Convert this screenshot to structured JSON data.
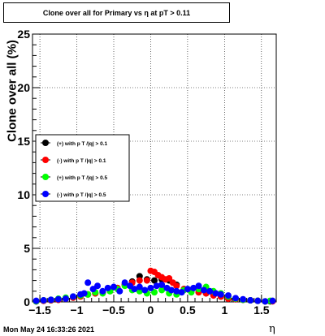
{
  "footer": {
    "timestamp": "Mon May 24 16:33:26 2021"
  },
  "chart_data": {
    "type": "scatter",
    "title": "Clone  over all for Primary vs   η at pT > 0.11",
    "xlabel": "η",
    "ylabel": "Clone  over all (%)",
    "xlim": [
      -1.6,
      1.7
    ],
    "ylim": [
      0,
      25
    ],
    "xticks": [
      -1.5,
      -1,
      -0.5,
      0,
      0.5,
      1,
      1.5
    ],
    "xtick_labels": [
      "−1.5",
      "−1",
      "−0.5",
      "0",
      "0.5",
      "1",
      "1.5"
    ],
    "yticks": [
      0,
      5,
      10,
      15,
      20,
      25
    ],
    "ytick_labels": [
      "0",
      "5",
      "10",
      "15",
      "20",
      "25"
    ],
    "grid": true,
    "legend_position": "left-middle",
    "series": [
      {
        "name": "(+) with p T /|q| > 0.1",
        "color": "#000000",
        "points": [
          [
            -1.55,
            0.05
          ],
          [
            -1.45,
            0.1
          ],
          [
            -1.35,
            0.15
          ],
          [
            -1.25,
            0.2
          ],
          [
            -1.15,
            0.3
          ],
          [
            -1.05,
            0.4
          ],
          [
            -0.95,
            0.6
          ],
          [
            -0.85,
            0.7
          ],
          [
            -0.75,
            0.8
          ],
          [
            -0.65,
            0.9
          ],
          [
            -0.55,
            1.1
          ],
          [
            -0.45,
            1.3
          ],
          [
            -0.35,
            1.6
          ],
          [
            -0.25,
            1.9
          ],
          [
            -0.15,
            2.4
          ],
          [
            -0.05,
            2.1
          ],
          [
            0.05,
            2.0
          ],
          [
            0.15,
            2.1
          ],
          [
            0.25,
            2.0
          ],
          [
            0.35,
            1.6
          ],
          [
            0.45,
            1.2
          ],
          [
            0.55,
            1.1
          ],
          [
            0.65,
            0.9
          ],
          [
            0.75,
            0.8
          ],
          [
            0.85,
            0.7
          ],
          [
            0.95,
            0.5
          ],
          [
            1.05,
            0.3
          ],
          [
            1.15,
            0.25
          ],
          [
            1.25,
            0.2
          ],
          [
            1.35,
            0.15
          ],
          [
            1.45,
            0.1
          ],
          [
            1.55,
            0.05
          ],
          [
            1.62,
            0.05
          ]
        ]
      },
      {
        "name": "(-) with p T /|q| > 0.1",
        "color": "#ff0000",
        "points": [
          [
            -1.55,
            0.05
          ],
          [
            -1.45,
            0.1
          ],
          [
            -1.35,
            0.15
          ],
          [
            -1.25,
            0.2
          ],
          [
            -1.15,
            0.3
          ],
          [
            -1.05,
            0.4
          ],
          [
            -0.95,
            0.5
          ],
          [
            -0.85,
            0.7
          ],
          [
            -0.75,
            0.8
          ],
          [
            -0.65,
            0.9
          ],
          [
            -0.55,
            1.0
          ],
          [
            -0.45,
            1.3
          ],
          [
            -0.35,
            1.6
          ],
          [
            -0.25,
            1.8
          ],
          [
            -0.15,
            2.0
          ],
          [
            -0.05,
            2.0
          ],
          [
            0.0,
            2.9
          ],
          [
            0.05,
            2.8
          ],
          [
            0.1,
            2.5
          ],
          [
            0.15,
            2.3
          ],
          [
            0.2,
            2.1
          ],
          [
            0.25,
            2.2
          ],
          [
            0.3,
            1.8
          ],
          [
            0.35,
            1.5
          ],
          [
            0.45,
            1.2
          ],
          [
            0.55,
            1.0
          ],
          [
            0.65,
            0.9
          ],
          [
            0.75,
            0.8
          ],
          [
            0.85,
            0.6
          ],
          [
            0.95,
            0.5
          ],
          [
            1.05,
            0.3
          ],
          [
            1.15,
            0.25
          ],
          [
            1.25,
            0.2
          ],
          [
            1.35,
            0.15
          ],
          [
            1.45,
            0.1
          ],
          [
            1.55,
            0.05
          ],
          [
            1.65,
            0.05
          ]
        ]
      },
      {
        "name": "(+) with p T /|q| > 0.5",
        "color": "#00ff00",
        "points": [
          [
            -1.55,
            0.05
          ],
          [
            -1.45,
            0.15
          ],
          [
            -1.35,
            0.2
          ],
          [
            -1.25,
            0.3
          ],
          [
            -1.15,
            0.4
          ],
          [
            -1.05,
            0.5
          ],
          [
            -0.95,
            0.6
          ],
          [
            -0.85,
            0.7
          ],
          [
            -0.75,
            0.9
          ],
          [
            -0.65,
            0.8
          ],
          [
            -0.55,
            1.0
          ],
          [
            -0.45,
            1.2
          ],
          [
            -0.35,
            1.5
          ],
          [
            -0.25,
            1.1
          ],
          [
            -0.15,
            1.0
          ],
          [
            -0.05,
            0.8
          ],
          [
            0.05,
            0.9
          ],
          [
            0.15,
            1.1
          ],
          [
            0.25,
            0.8
          ],
          [
            0.35,
            0.7
          ],
          [
            0.45,
            1.1
          ],
          [
            0.55,
            0.9
          ],
          [
            0.65,
            1.2
          ],
          [
            0.75,
            1.4
          ],
          [
            0.85,
            1.0
          ],
          [
            0.95,
            0.8
          ],
          [
            1.05,
            0.5
          ],
          [
            1.15,
            0.3
          ],
          [
            1.25,
            0.2
          ],
          [
            1.35,
            0.15
          ],
          [
            1.45,
            0.1
          ],
          [
            1.55,
            0.05
          ],
          [
            1.62,
            0.1
          ]
        ]
      },
      {
        "name": "(-) with p T /|q| > 0.5",
        "color": "#0000ff",
        "points": [
          [
            -1.55,
            0.1
          ],
          [
            -1.45,
            0.15
          ],
          [
            -1.35,
            0.2
          ],
          [
            -1.25,
            0.25
          ],
          [
            -1.15,
            0.3
          ],
          [
            -1.05,
            0.5
          ],
          [
            -0.95,
            0.7
          ],
          [
            -0.9,
            0.8
          ],
          [
            -0.85,
            1.8
          ],
          [
            -0.78,
            1.2
          ],
          [
            -0.72,
            1.5
          ],
          [
            -0.65,
            1.0
          ],
          [
            -0.58,
            1.3
          ],
          [
            -0.5,
            1.4
          ],
          [
            -0.42,
            1.0
          ],
          [
            -0.35,
            1.8
          ],
          [
            -0.28,
            1.5
          ],
          [
            -0.22,
            1.2
          ],
          [
            -0.15,
            1.4
          ],
          [
            -0.08,
            1.1
          ],
          [
            0.0,
            1.3
          ],
          [
            0.08,
            1.5
          ],
          [
            0.15,
            1.6
          ],
          [
            0.22,
            1.3
          ],
          [
            0.28,
            1.1
          ],
          [
            0.35,
            1.0
          ],
          [
            0.42,
            0.9
          ],
          [
            0.5,
            1.2
          ],
          [
            0.58,
            1.3
          ],
          [
            0.65,
            1.5
          ],
          [
            0.72,
            1.1
          ],
          [
            0.8,
            1.0
          ],
          [
            0.88,
            0.8
          ],
          [
            0.95,
            0.7
          ],
          [
            1.05,
            0.6
          ],
          [
            1.15,
            0.35
          ],
          [
            1.25,
            0.25
          ],
          [
            1.35,
            0.15
          ],
          [
            1.45,
            0.1
          ],
          [
            1.55,
            0.05
          ],
          [
            1.65,
            0.1
          ]
        ]
      }
    ]
  }
}
